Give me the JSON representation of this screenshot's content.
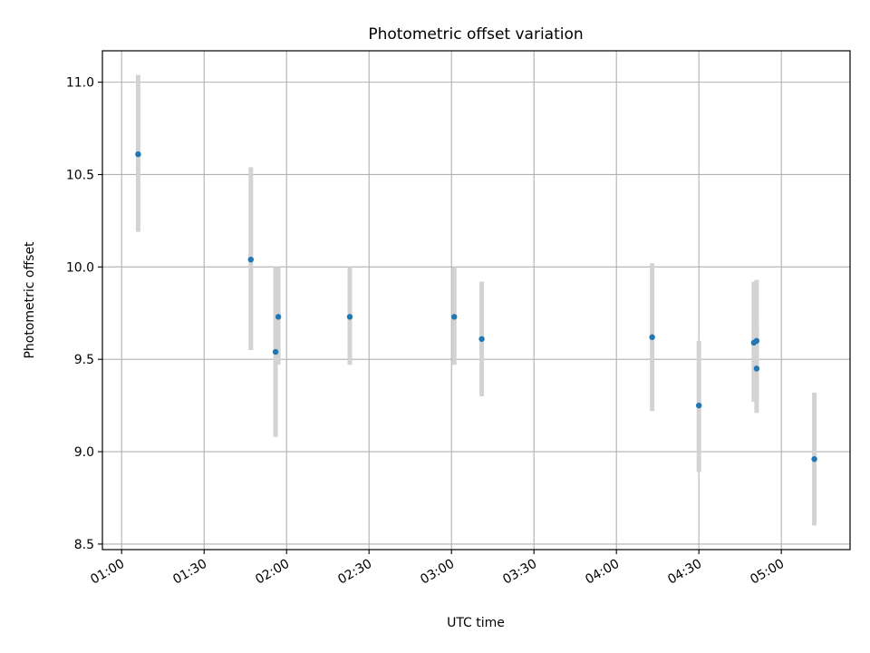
{
  "chart_data": {
    "type": "scatter",
    "title": "Photometric offset variation",
    "xlabel": "UTC time",
    "ylabel": "Photometric offset",
    "x_axis_type": "time",
    "xlim": [
      "00:53",
      "05:25"
    ],
    "ylim": [
      8.47,
      11.17
    ],
    "xticks": [
      "01:00",
      "01:30",
      "02:00",
      "02:30",
      "03:00",
      "03:30",
      "04:00",
      "04:30",
      "05:00"
    ],
    "yticks": [
      "8.5",
      "9.0",
      "9.5",
      "10.0",
      "10.5",
      "11.0"
    ],
    "grid": true,
    "legend": "none",
    "colors": {
      "points": "#1f77b4",
      "error_bars": "#d3d3d3",
      "grid": "#b0b0b0"
    },
    "points": [
      {
        "x": "01:06",
        "y": 10.61,
        "ylow": 10.19,
        "yhigh": 11.04
      },
      {
        "x": "01:47",
        "y": 10.04,
        "ylow": 9.55,
        "yhigh": 10.54
      },
      {
        "x": "01:56",
        "y": 9.54,
        "ylow": 9.08,
        "yhigh": 10.0
      },
      {
        "x": "01:57",
        "y": 9.73,
        "ylow": 9.47,
        "yhigh": 10.0
      },
      {
        "x": "02:23",
        "y": 9.73,
        "ylow": 9.47,
        "yhigh": 10.0
      },
      {
        "x": "03:01",
        "y": 9.73,
        "ylow": 9.47,
        "yhigh": 10.0
      },
      {
        "x": "03:11",
        "y": 9.61,
        "ylow": 9.3,
        "yhigh": 9.92
      },
      {
        "x": "04:13",
        "y": 9.62,
        "ylow": 9.22,
        "yhigh": 10.02
      },
      {
        "x": "04:30",
        "y": 9.25,
        "ylow": 8.89,
        "yhigh": 9.6
      },
      {
        "x": "04:50",
        "y": 9.59,
        "ylow": 9.27,
        "yhigh": 9.92
      },
      {
        "x": "04:51",
        "y": 9.6,
        "ylow": 9.27,
        "yhigh": 9.93
      },
      {
        "x": "04:51",
        "y": 9.45,
        "ylow": 9.21,
        "yhigh": 9.7
      },
      {
        "x": "05:12",
        "y": 8.96,
        "ylow": 8.6,
        "yhigh": 9.32
      }
    ]
  }
}
